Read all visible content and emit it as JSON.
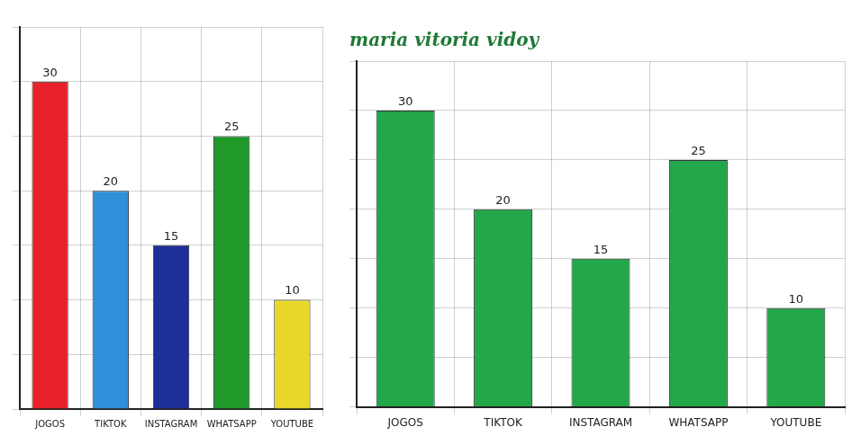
{
  "chart_data": [
    {
      "type": "bar",
      "categories": [
        "JOGOS",
        "TIKTOK",
        "INSTAGRAM",
        "WHATSAPP",
        "YOUTUBE"
      ],
      "values": [
        30,
        20,
        15,
        25,
        10
      ],
      "colors": [
        "#e8202a",
        "#2f8fd8",
        "#1f2f9a",
        "#1f9a2a",
        "#e8d82a"
      ],
      "ylim": [
        0,
        35
      ],
      "yticks": [
        0,
        5,
        10,
        15,
        20,
        25,
        30,
        35
      ],
      "grid": true,
      "data_labels": true,
      "tick_labels": "x"
    },
    {
      "type": "bar",
      "title": "maria vitoria vidoy",
      "categories": [
        "JOGOS",
        "TIKTOK",
        "INSTAGRAM",
        "WHATSAPP",
        "YOUTUBE"
      ],
      "values": [
        30,
        20,
        15,
        25,
        10
      ],
      "color": "#22a84a",
      "ylim": [
        0,
        35
      ],
      "yticks": [
        0,
        5,
        10,
        15,
        20,
        25,
        30,
        35
      ],
      "grid": true,
      "data_labels": true,
      "tick_labels": "x"
    }
  ]
}
